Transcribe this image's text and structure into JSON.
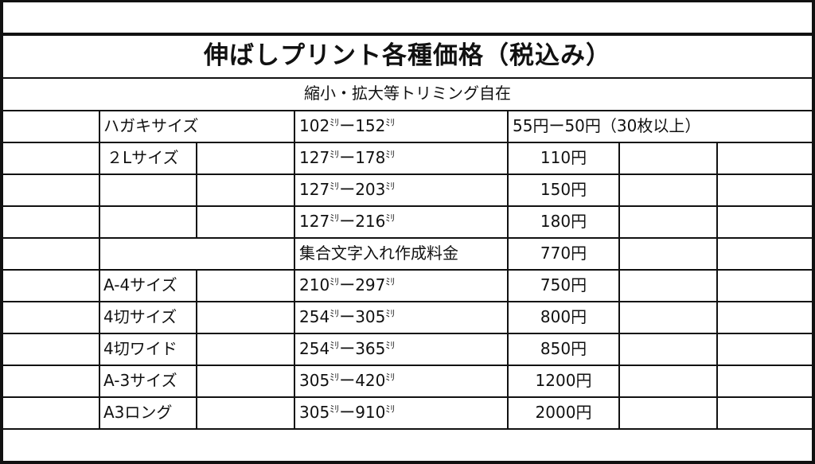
{
  "title": "伸ばしプリント各種価格（税込み）",
  "subtitle": "縮小・拡大等トリミング自在",
  "mm_unit": "ﾐﾘ",
  "rows": [
    {
      "name": "ハガキサイズ",
      "size_a": "102",
      "size_b": "152",
      "price": "55円ー50円（30枚以上）"
    },
    {
      "name": "２Lサイズ",
      "size_a": "127",
      "size_b": "178",
      "price": "110円"
    },
    {
      "name": "",
      "size_a": "127",
      "size_b": "203",
      "price": "150円"
    },
    {
      "name": "",
      "size_a": "127",
      "size_b": "216",
      "price": "180円"
    },
    {
      "name": "",
      "size_text": "集合文字入れ作成料金",
      "price": "770円"
    },
    {
      "name": "A-4サイズ",
      "size_a": "210",
      "size_b": "297",
      "price": "750円"
    },
    {
      "name": "4切サイズ",
      "size_a": "254",
      "size_b": "305",
      "price": "800円"
    },
    {
      "name": "4切ワイド",
      "size_a": "254",
      "size_b": "365",
      "price": "850円"
    },
    {
      "name": "A-3サイズ",
      "size_a": "305",
      "size_b": "420",
      "price": "1200円"
    },
    {
      "name": "A3ロング",
      "size_a": "305",
      "size_b": "910",
      "price": "2000円"
    }
  ]
}
